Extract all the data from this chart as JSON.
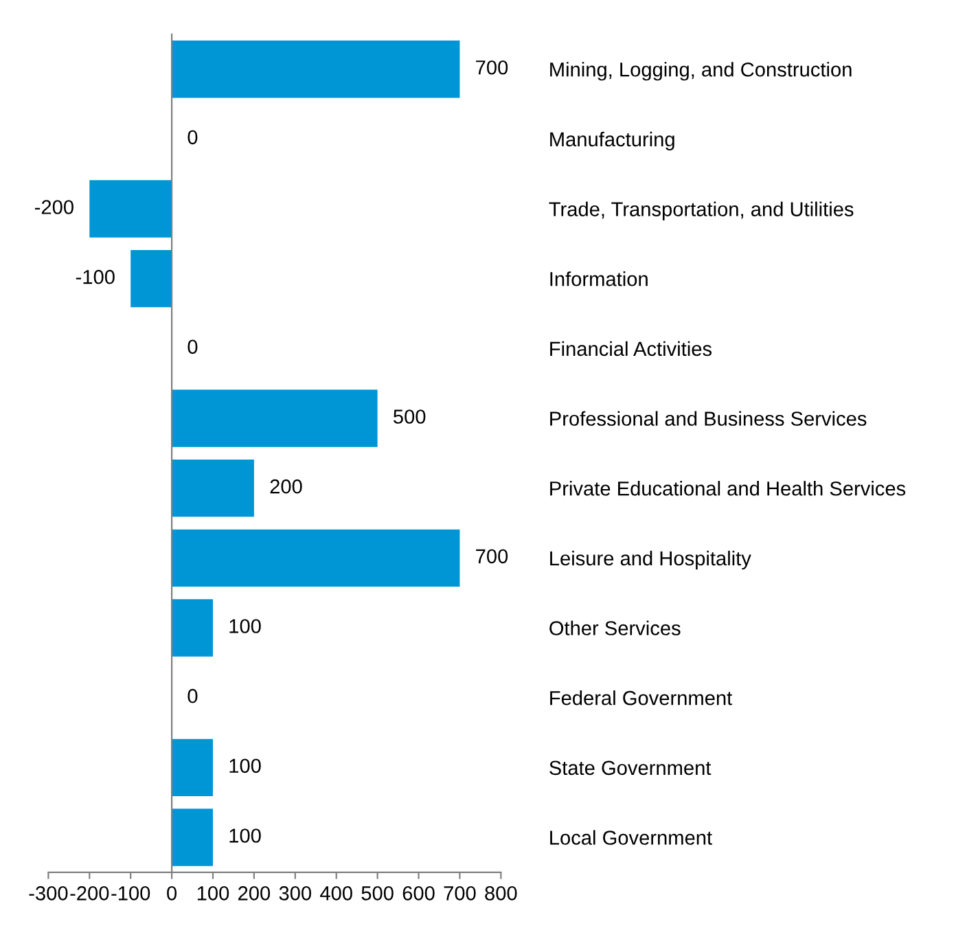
{
  "chart_data": {
    "type": "bar",
    "orientation": "horizontal",
    "categories": [
      "Mining, Logging, and Construction",
      "Manufacturing",
      "Trade, Transportation, and Utilities",
      "Information",
      "Financial Activities",
      "Professional and Business Services",
      "Private Educational and Health Services",
      "Leisure and Hospitality",
      "Other Services",
      "Federal Government",
      "State Government",
      "Local Government"
    ],
    "values": [
      700,
      0,
      -200,
      -100,
      0,
      500,
      200,
      700,
      100,
      0,
      100,
      100
    ],
    "color": "#0096d6",
    "xlim": [
      -300,
      800
    ],
    "xticks": [
      -300,
      -200,
      -100,
      0,
      100,
      200,
      300,
      400,
      500,
      600,
      700,
      800
    ],
    "data_labels": true,
    "legend": false
  }
}
